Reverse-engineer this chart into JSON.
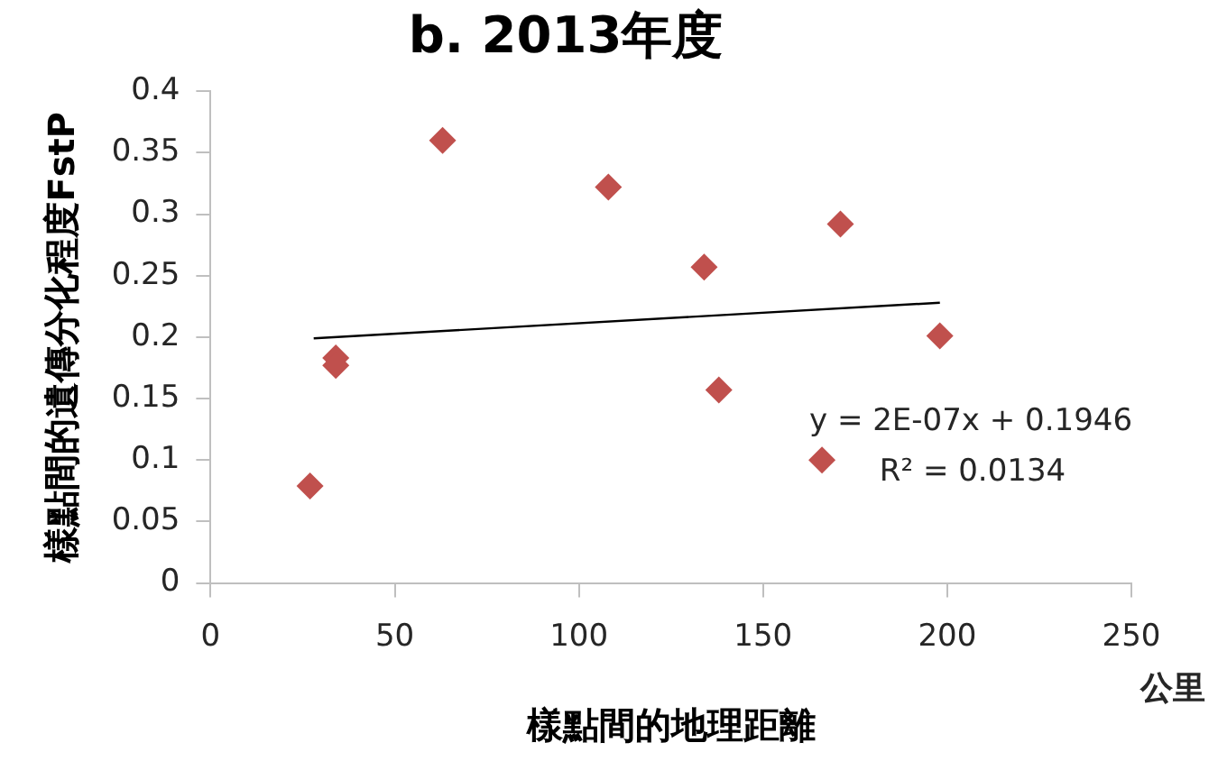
{
  "chart_data": {
    "type": "scatter",
    "title": "b. 2013年度",
    "xlabel": "樣點間的地理距離",
    "ylabel": "樣點間的遺傳分化程度FstP",
    "annotations": [
      "y = 2E-07x + 0.1946",
      "R² = 0.0134",
      "公里"
    ],
    "series": [
      {
        "color": "#c0504d",
        "marker": "diamond",
        "x": [
          27,
          34,
          34,
          63,
          108,
          134,
          138,
          166,
          171,
          198
        ],
        "values": [
          0.079,
          0.183,
          0.177,
          0.36,
          0.322,
          0.257,
          0.157,
          0.1,
          0.292,
          0.201
        ]
      },
      {
        "type": "line",
        "color": "#000000",
        "marker": "none",
        "x": [
          28,
          198
        ],
        "values": [
          0.199,
          0.228
        ]
      }
    ],
    "xlim": [
      0,
      250
    ],
    "xticks": [
      0,
      50,
      100,
      150,
      200,
      250
    ],
    "ylim": [
      0,
      0.4
    ],
    "yticks": [
      0,
      0.05,
      0.1,
      0.15,
      0.2,
      0.25,
      0.3,
      0.35,
      0.4
    ],
    "grid": false,
    "legend": false
  }
}
